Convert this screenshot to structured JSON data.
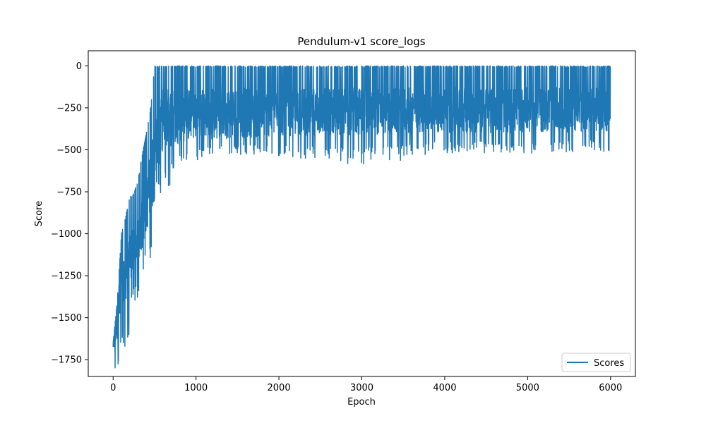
{
  "chart_data": {
    "type": "line",
    "title": "Pendulum-v1 score_logs",
    "xlabel": "Epoch",
    "ylabel": "Score",
    "xlim": [
      -300,
      6300
    ],
    "ylim": [
      -1850,
      90
    ],
    "xticks": [
      0,
      1000,
      2000,
      3000,
      4000,
      5000,
      6000
    ],
    "xtick_labels": [
      "0",
      "1000",
      "2000",
      "3000",
      "4000",
      "5000",
      "6000"
    ],
    "yticks": [
      0,
      -250,
      -500,
      -750,
      -1000,
      -1250,
      -1500,
      -1750
    ],
    "ytick_labels": [
      "0",
      "−250",
      "−500",
      "−750",
      "−1000",
      "−1250",
      "−1500",
      "−1750"
    ],
    "grid": false,
    "legend_position": "bottom-right",
    "series": [
      {
        "name": "Scores",
        "color": "#1f77b4",
        "x_start": 0,
        "x_end": 5999,
        "envelope_note_x": [
          0,
          50,
          100,
          150,
          200,
          250,
          300,
          350,
          400,
          450,
          500,
          550,
          600,
          700,
          800,
          900,
          1000,
          1500,
          2000,
          3000,
          4000,
          5000,
          5999
        ],
        "envelope_lower": [
          -1850,
          -1800,
          -1750,
          -1730,
          -1600,
          -1470,
          -1400,
          -1250,
          -1200,
          -1150,
          -1130,
          -800,
          -780,
          -700,
          -620,
          -600,
          -560,
          -530,
          -540,
          -600,
          -520,
          -520,
          -510
        ],
        "envelope_upper": [
          -1650,
          -1400,
          -1000,
          -900,
          -780,
          -760,
          -680,
          -530,
          -400,
          -260,
          0,
          0,
          0,
          0,
          0,
          0,
          0,
          0,
          0,
          0,
          0,
          0,
          0
        ],
        "typical_band_upper": [
          -1500,
          -1300,
          -1200,
          -1100,
          -1000,
          -950,
          -900,
          -800,
          -700,
          -500,
          -250,
          -130,
          -130,
          -130,
          -130,
          -130,
          -130,
          -130,
          -130,
          -130,
          -130,
          -130,
          -130
        ],
        "typical_band_lower": [
          -1750,
          -1650,
          -1500,
          -1400,
          -1300,
          -1200,
          -1150,
          -1100,
          -1000,
          -900,
          -800,
          -600,
          -500,
          -480,
          -460,
          -450,
          -440,
          -430,
          -420,
          -410,
          -400,
          -400,
          -390
        ]
      }
    ]
  }
}
